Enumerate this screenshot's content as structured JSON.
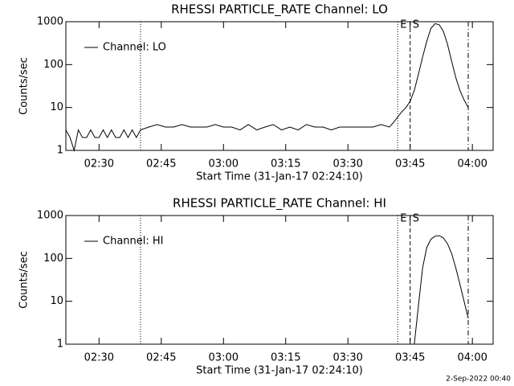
{
  "chart_data": [
    {
      "type": "line",
      "title": "RHESSI PARTICLE_RATE Channel: LO",
      "xlabel": "Start Time (31-Jan-17 02:24:10)",
      "ylabel": "Counts/sec",
      "log_y": true,
      "ylim": [
        1,
        1000
      ],
      "yticks": [
        1,
        10,
        100,
        1000
      ],
      "xlim": [
        "02:22",
        "04:05"
      ],
      "xticks": [
        "02:30",
        "02:45",
        "03:00",
        "03:15",
        "03:30",
        "03:45",
        "04:00"
      ],
      "x": [
        "02:22",
        "02:23",
        "02:24",
        "02:25",
        "02:26",
        "02:27",
        "02:28",
        "02:29",
        "02:30",
        "02:31",
        "02:32",
        "02:33",
        "02:34",
        "02:35",
        "02:36",
        "02:37",
        "02:38",
        "02:39",
        "02:40",
        "02:42",
        "02:44",
        "02:46",
        "02:48",
        "02:50",
        "02:52",
        "02:54",
        "02:56",
        "02:58",
        "03:00",
        "03:02",
        "03:04",
        "03:06",
        "03:08",
        "03:10",
        "03:12",
        "03:14",
        "03:16",
        "03:18",
        "03:20",
        "03:22",
        "03:24",
        "03:26",
        "03:28",
        "03:30",
        "03:32",
        "03:34",
        "03:36",
        "03:38",
        "03:40",
        "03:41",
        "03:42",
        "03:43",
        "03:44",
        "03:45",
        "03:46",
        "03:47",
        "03:48",
        "03:49",
        "03:50",
        "03:51",
        "03:52",
        "03:53",
        "03:54",
        "03:55",
        "03:56",
        "03:57",
        "03:58",
        "03:59"
      ],
      "series": [
        {
          "name": "Channel: LO",
          "color": "#000000",
          "values": [
            3,
            2,
            1,
            3,
            2,
            2,
            3,
            2,
            2,
            3,
            2,
            3,
            2,
            2,
            3,
            2,
            3,
            2,
            3,
            3.5,
            4,
            3.5,
            3.5,
            4,
            3.5,
            3.5,
            3.5,
            4,
            3.5,
            3.5,
            3,
            4,
            3,
            3.5,
            4,
            3,
            3.5,
            3,
            4,
            3.5,
            3.5,
            3,
            3.5,
            3.5,
            3.5,
            3.5,
            3.5,
            4,
            3.5,
            4.5,
            6,
            8,
            10,
            14,
            25,
            60,
            150,
            350,
            700,
            900,
            850,
            600,
            300,
            120,
            50,
            25,
            15,
            10
          ]
        }
      ],
      "markers": [
        {
          "x": "02:40",
          "style": "dotted"
        },
        {
          "x": "03:42",
          "style": "dotted",
          "label": "E"
        },
        {
          "x": "03:45",
          "style": "dashed",
          "label": "S"
        },
        {
          "x": "03:59",
          "style": "dashdot"
        }
      ]
    },
    {
      "type": "line",
      "title": "RHESSI PARTICLE_RATE Channel: HI",
      "xlabel": "Start Time (31-Jan-17 02:24:10)",
      "ylabel": "Counts/sec",
      "log_y": true,
      "ylim": [
        1,
        1000
      ],
      "yticks": [
        1,
        10,
        100,
        1000
      ],
      "xlim": [
        "02:22",
        "04:05"
      ],
      "xticks": [
        "02:30",
        "02:45",
        "03:00",
        "03:15",
        "03:30",
        "03:45",
        "04:00"
      ],
      "x": [
        "03:46",
        "03:47",
        "03:48",
        "03:49",
        "03:50",
        "03:51",
        "03:52",
        "03:53",
        "03:54",
        "03:55",
        "03:56",
        "03:57",
        "03:58",
        "03:59"
      ],
      "series": [
        {
          "name": "Channel: HI",
          "color": "#000000",
          "values": [
            1,
            8,
            60,
            180,
            280,
            330,
            340,
            300,
            220,
            130,
            60,
            25,
            10,
            4
          ]
        }
      ],
      "markers": [
        {
          "x": "02:40",
          "style": "dotted"
        },
        {
          "x": "03:42",
          "style": "dotted",
          "label": "E"
        },
        {
          "x": "03:45",
          "style": "dashed",
          "label": "S"
        },
        {
          "x": "03:59",
          "style": "dashdot"
        }
      ]
    }
  ],
  "footer": "2-Sep-2022 00:40"
}
